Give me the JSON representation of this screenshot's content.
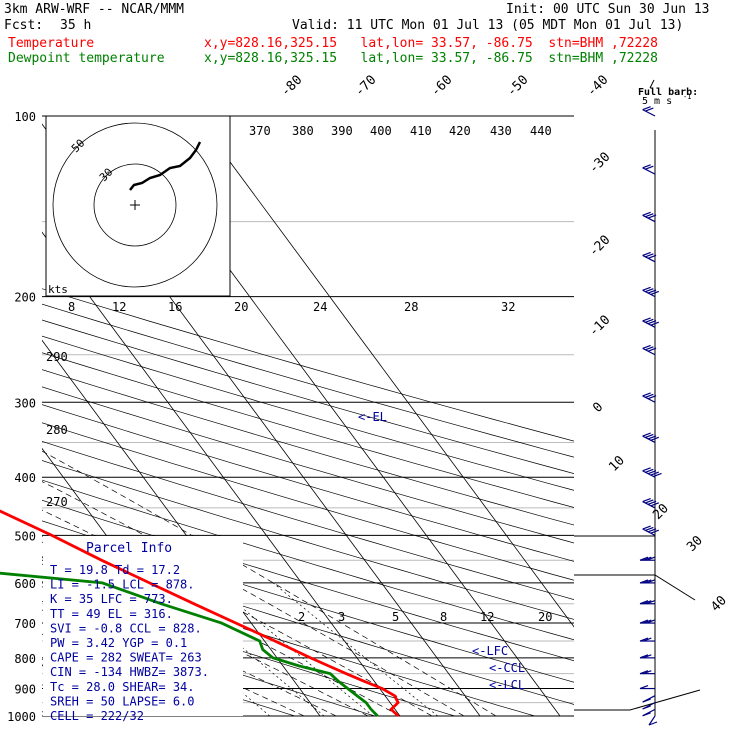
{
  "header": {
    "model": "3km ARW-WRF -- NCAR/MMM",
    "init": "Init: 00 UTC Sun 30 Jun 13",
    "fcst_label": "Fcst:",
    "fcst_value": "35 h",
    "valid": "Valid: 11 UTC Mon 01 Jul 13 (05 MDT Mon 01 Jul 13)",
    "temp_label": "Temperature",
    "dew_label": "Dewpoint temperature",
    "temp_info": "x,y=828.16,325.15   lat,lon= 33.57, -86.75  stn=BHM ,72228",
    "dew_info": "x,y=828.16,325.15   lat,lon= 33.57, -86.75  stn=BHM ,72228"
  },
  "colors": {
    "temperature": "#ff0000",
    "dewpoint": "#008000",
    "parcel_box": "#0000a0",
    "barbs": "#000080",
    "grid": "#000000"
  },
  "barb_key": {
    "title": "Full barb:",
    "value": "5 m s",
    "exp": "-1"
  },
  "pressure_labels": [
    "100",
    "200",
    "300",
    "400",
    "500",
    "600",
    "700",
    "800",
    "900",
    "1000"
  ],
  "temp_labels": [
    "-80",
    "-70",
    "-60",
    "-50",
    "-40",
    "-30",
    "-20",
    "-10",
    "0",
    "10",
    "20",
    "30",
    "40"
  ],
  "theta_top_labels": [
    "370",
    "380",
    "390",
    "400",
    "410",
    "420",
    "430",
    "440"
  ],
  "theta_left_labels": [
    "290",
    "280",
    "270"
  ],
  "mixing_top_labels": [
    "8",
    "12",
    "16",
    "20",
    "24",
    "28",
    "32"
  ],
  "mixing_low_labels": [
    "2",
    "3",
    "5",
    "8",
    "12",
    "20"
  ],
  "hodograph": {
    "unit": "kts",
    "rings": [
      "50",
      "30"
    ]
  },
  "levels": {
    "el": "<-EL",
    "lfc": "<-LFC",
    "ccl": "<-CCL",
    "lcl": "<-LCL"
  },
  "parcel": {
    "title": "Parcel Info",
    "rows": [
      "T =   19.8 Td =  17.2",
      "LI =  -1.5 LCL =  878.",
      "K =     35 LFC =  773.",
      "TT =    49 EL =   316.",
      "SVI = -0.8 CCL =  828.",
      "PW =  3.42 YGP =   0.1",
      "CAPE =  282 SWEAT=  263",
      "CIN =  -134 HWBZ= 3873.",
      "Tc =  28.0 SHEAR=  34.",
      "SREH =  50 LAPSE=  6.0",
      "CELL = 222/32"
    ]
  },
  "chart_data": {
    "type": "line",
    "title": "3km ARW-WRF -- NCAR/MMM skew-T sounding, stn=BHM ,72228",
    "xlabel": "",
    "ylabel": "",
    "y_axis": "pressure (hPa), log scale",
    "ylim": [
      1000,
      100
    ],
    "x_axis": "temperature (C), skewed isotherms",
    "series": [
      {
        "name": "Temperature",
        "color": "#ff0000",
        "points": [
          [
            1000,
            19.8
          ],
          [
            975,
            19.5
          ],
          [
            950,
            21.0
          ],
          [
            925,
            21.2
          ],
          [
            900,
            20.3
          ],
          [
            875,
            18.7
          ],
          [
            850,
            17.2
          ],
          [
            825,
            15.7
          ],
          [
            800,
            14.2
          ],
          [
            775,
            12.8
          ],
          [
            750,
            11.3
          ],
          [
            700,
            8.1
          ],
          [
            650,
            4.6
          ],
          [
            600,
            1.0
          ],
          [
            550,
            -2.9
          ],
          [
            500,
            -6.8
          ],
          [
            450,
            -11.6
          ],
          [
            400,
            -17.0
          ],
          [
            350,
            -22.2
          ],
          [
            300,
            -28.7
          ],
          [
            275,
            -32.9
          ],
          [
            250,
            -37.3
          ],
          [
            225,
            -43.8
          ],
          [
            200,
            -50.2
          ],
          [
            175,
            -54.1
          ],
          [
            150,
            -59.0
          ],
          [
            125,
            -63.8
          ],
          [
            100,
            -66.0
          ]
        ]
      },
      {
        "name": "Dewpoint temperature",
        "color": "#008000",
        "points": [
          [
            1000,
            17.2
          ],
          [
            975,
            17.0
          ],
          [
            950,
            17.0
          ],
          [
            925,
            16.5
          ],
          [
            900,
            16.0
          ],
          [
            875,
            15.5
          ],
          [
            850,
            15.2
          ],
          [
            825,
            12.0
          ],
          [
            800,
            9.5
          ],
          [
            775,
            9.0
          ],
          [
            750,
            9.4
          ],
          [
            700,
            6.3
          ],
          [
            650,
            0.5
          ],
          [
            600,
            -4.9
          ],
          [
            575,
            -18.5
          ],
          [
            550,
            -21.0
          ],
          [
            500,
            -25.2
          ],
          [
            450,
            -30.8
          ],
          [
            400,
            -34.5
          ],
          [
            350,
            -43.0
          ],
          [
            330,
            -46.5
          ],
          [
            300,
            -48.5
          ],
          [
            250,
            -52.8
          ],
          [
            200,
            -65.5
          ],
          [
            175,
            -70.0
          ],
          [
            150,
            -76.5
          ],
          [
            125,
            -80.5
          ],
          [
            100,
            -84.0
          ]
        ]
      }
    ],
    "wind_barbs": [
      {
        "p": 1000,
        "dir": "S",
        "spd_ms": 3
      },
      {
        "p": 975,
        "dir": "SW",
        "spd_ms": 5
      },
      {
        "p": 950,
        "dir": "SW",
        "spd_ms": 5
      },
      {
        "p": 925,
        "dir": "SW",
        "spd_ms": 5
      },
      {
        "p": 900,
        "dir": "W",
        "spd_ms": 5
      },
      {
        "p": 850,
        "dir": "W",
        "spd_ms": 10
      },
      {
        "p": 800,
        "dir": "W",
        "spd_ms": 10
      },
      {
        "p": 750,
        "dir": "W",
        "spd_ms": 10
      },
      {
        "p": 700,
        "dir": "W",
        "spd_ms": 15
      },
      {
        "p": 650,
        "dir": "W",
        "spd_ms": 15
      },
      {
        "p": 600,
        "dir": "W",
        "spd_ms": 15
      },
      {
        "p": 550,
        "dir": "W",
        "spd_ms": 15
      },
      {
        "p": 500,
        "dir": "NW",
        "spd_ms": 20
      },
      {
        "p": 450,
        "dir": "NW",
        "spd_ms": 20
      },
      {
        "p": 400,
        "dir": "NW",
        "spd_ms": 25
      },
      {
        "p": 350,
        "dir": "NW",
        "spd_ms": 20
      },
      {
        "p": 300,
        "dir": "NW",
        "spd_ms": 15
      },
      {
        "p": 250,
        "dir": "NW",
        "spd_ms": 15
      },
      {
        "p": 225,
        "dir": "NW",
        "spd_ms": 20
      },
      {
        "p": 200,
        "dir": "NW",
        "spd_ms": 20
      },
      {
        "p": 175,
        "dir": "NW",
        "spd_ms": 15
      },
      {
        "p": 150,
        "dir": "NW",
        "spd_ms": 15
      },
      {
        "p": 125,
        "dir": "NW",
        "spd_ms": 10
      },
      {
        "p": 100,
        "dir": "NW",
        "spd_ms": 10
      }
    ]
  }
}
